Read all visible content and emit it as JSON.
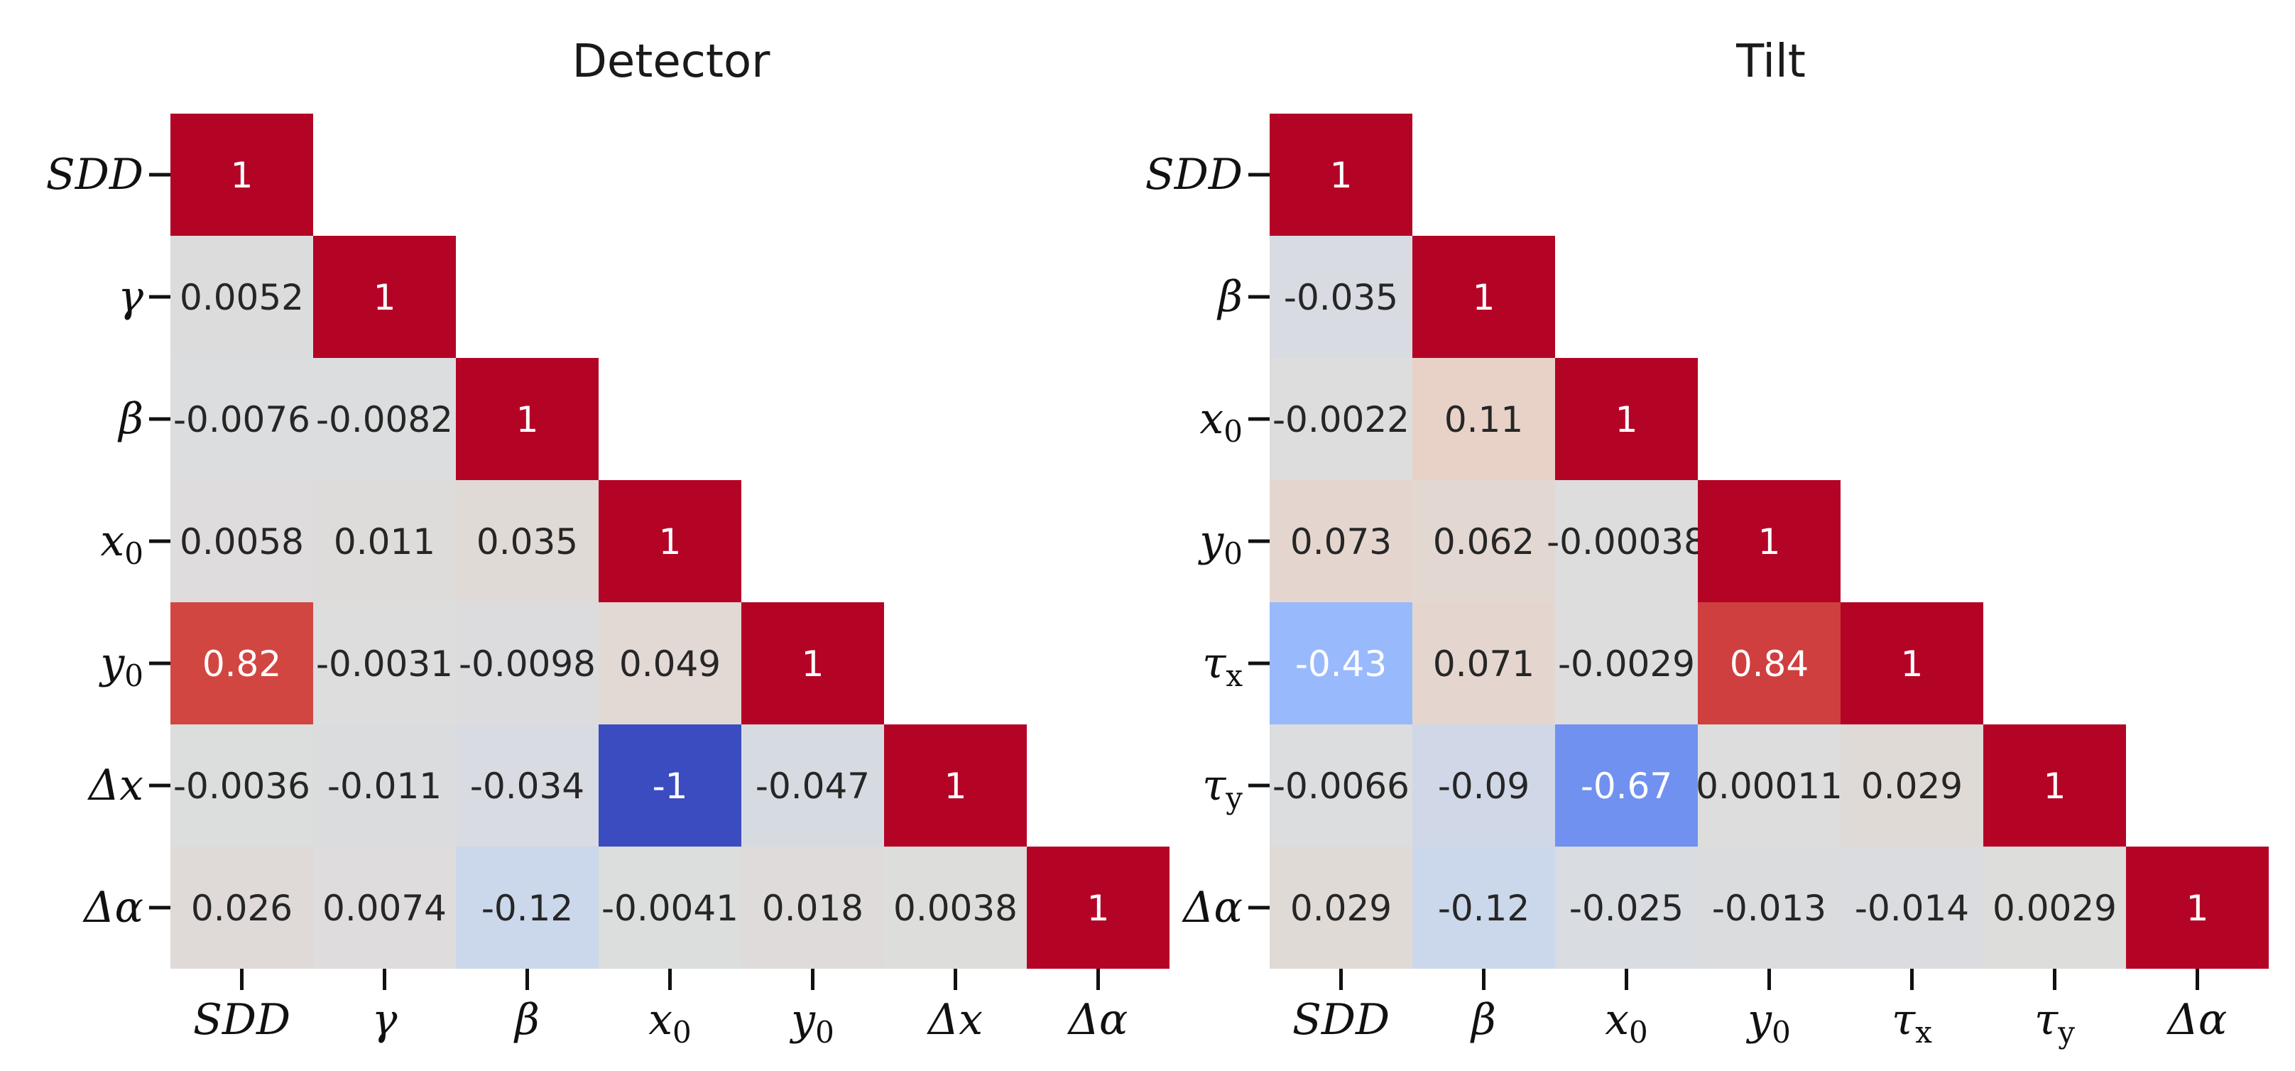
{
  "chart_data": [
    {
      "type": "heatmap",
      "title": "Detector",
      "labels": [
        "SDD",
        "γ",
        "β",
        "x0",
        "y0",
        "Δx",
        "Δα"
      ],
      "label_parts": [
        [
          "SDD",
          ""
        ],
        [
          "γ",
          ""
        ],
        [
          "β",
          ""
        ],
        [
          "x",
          "0"
        ],
        [
          "y",
          "0"
        ],
        [
          "Δx",
          ""
        ],
        [
          "Δα",
          ""
        ]
      ],
      "matrix_lower": [
        [
          "1"
        ],
        [
          "0.0052",
          "1"
        ],
        [
          "-0.0076",
          "-0.0082",
          "1"
        ],
        [
          "0.0058",
          "0.011",
          "0.035",
          "1"
        ],
        [
          "0.82",
          "-0.0031",
          "-0.0098",
          "0.049",
          "1"
        ],
        [
          "-0.0036",
          "-0.011",
          "-0.034",
          "-1",
          "-0.047",
          "1"
        ],
        [
          "0.026",
          "0.0074",
          "-0.12",
          "-0.0041",
          "0.018",
          "0.0038",
          "1"
        ]
      ],
      "color_range": [
        -1,
        1
      ],
      "colormap": "coolwarm"
    },
    {
      "type": "heatmap",
      "title": "Tilt",
      "labels": [
        "SDD",
        "β",
        "x0",
        "y0",
        "τx",
        "τy",
        "Δα"
      ],
      "label_parts": [
        [
          "SDD",
          ""
        ],
        [
          "β",
          ""
        ],
        [
          "x",
          "0"
        ],
        [
          "y",
          "0"
        ],
        [
          "τ",
          "x"
        ],
        [
          "τ",
          "y"
        ],
        [
          "Δα",
          ""
        ]
      ],
      "matrix_lower": [
        [
          "1"
        ],
        [
          "-0.035",
          "1"
        ],
        [
          "-0.0022",
          "0.11",
          "1"
        ],
        [
          "0.073",
          "0.062",
          "-0.00038",
          "1"
        ],
        [
          "-0.43",
          "0.071",
          "-0.0029",
          "0.84",
          "1"
        ],
        [
          "-0.0066",
          "-0.09",
          "-0.67",
          "0.00011",
          "0.029",
          "1"
        ],
        [
          "0.029",
          "-0.12",
          "-0.025",
          "-0.013",
          "-0.014",
          "0.0029",
          "1"
        ]
      ],
      "color_range": [
        -1,
        1
      ],
      "colormap": "coolwarm"
    }
  ]
}
